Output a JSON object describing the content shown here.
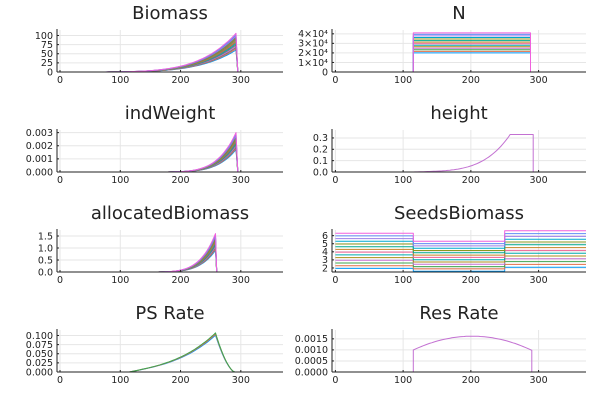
{
  "chart_data": [
    {
      "type": "line",
      "title": "Biomass",
      "xlim": [
        -5,
        370
      ],
      "ylim": [
        0,
        115
      ],
      "xticks": [
        0,
        100,
        200,
        300
      ],
      "yticks": [
        0,
        25,
        50,
        75,
        100
      ],
      "yticklabels": [
        "0",
        "25",
        "50",
        "75",
        "100"
      ],
      "grid": true,
      "legend": "none",
      "series_count": 14,
      "shape": {
        "kind": "rise_peak",
        "x_start": 0,
        "x_peak": 292,
        "x_end": 295,
        "peak_min": 60,
        "peak_max": 106
      }
    },
    {
      "type": "line",
      "title": "N",
      "xlim": [
        -5,
        370
      ],
      "ylim": [
        0,
        4.4
      ],
      "xticks": [
        0,
        100,
        200,
        300
      ],
      "yticks": [
        0,
        1,
        2,
        3,
        4
      ],
      "yticklabels": [
        "0",
        "1×10⁴",
        "2×10⁴",
        "3×10⁴",
        "4×10⁴"
      ],
      "grid": true,
      "legend": "none",
      "series_count": 14,
      "shape": {
        "kind": "plateau",
        "x_start": 115,
        "x_end": 288,
        "level_min": 2.0,
        "level_max": 4.1
      }
    },
    {
      "type": "line",
      "title": "indWeight",
      "xlim": [
        -5,
        370
      ],
      "ylim": [
        0,
        0.0032
      ],
      "xticks": [
        0,
        100,
        200,
        300
      ],
      "yticks": [
        0,
        0.001,
        0.002,
        0.003
      ],
      "yticklabels": [
        "0.000",
        "0.001",
        "0.002",
        "0.003"
      ],
      "grid": true,
      "legend": "none",
      "series_count": 14,
      "shape": {
        "kind": "rise_peak",
        "x_start": 140,
        "x_peak": 292,
        "x_end": 295,
        "peak_min": 0.0017,
        "peak_max": 0.003
      }
    },
    {
      "type": "line",
      "title": "height",
      "xlim": [
        -5,
        370
      ],
      "ylim": [
        0,
        0.37
      ],
      "xticks": [
        0,
        100,
        200,
        300
      ],
      "yticks": [
        0,
        0.1,
        0.2,
        0.3
      ],
      "yticklabels": [
        "0.0",
        "0.1",
        "0.2",
        "0.3"
      ],
      "grid": true,
      "legend": "none",
      "series_count": 1,
      "shape": {
        "kind": "height_curve",
        "x_start": 115,
        "x_top": 258,
        "x_end": 292,
        "level": 0.33
      }
    },
    {
      "type": "line",
      "title": "allocatedBiomass",
      "xlim": [
        -5,
        370
      ],
      "ylim": [
        0,
        1.75
      ],
      "xticks": [
        0,
        100,
        200,
        300
      ],
      "yticks": [
        0,
        0.5,
        1.0,
        1.5
      ],
      "yticklabels": [
        "0.0",
        "0.5",
        "1.0",
        "1.5"
      ],
      "grid": true,
      "legend": "none",
      "series_count": 14,
      "shape": {
        "kind": "rise_peak",
        "x_start": 130,
        "x_peak": 258,
        "x_end": 260,
        "peak_min": 0.9,
        "peak_max": 1.6
      }
    },
    {
      "type": "line",
      "title": "SeedsBiomass",
      "xlim": [
        -5,
        370
      ],
      "ylim": [
        1.5,
        6.7
      ],
      "xticks": [
        0,
        100,
        200,
        300
      ],
      "yticks": [
        2,
        3,
        4,
        5,
        6
      ],
      "yticklabels": [
        "2",
        "3",
        "4",
        "5",
        "6"
      ],
      "grid": true,
      "legend": "none",
      "series_count": 14,
      "shape": {
        "kind": "steps",
        "step1_x": 115,
        "step2_x": 250,
        "seg1": [
          1.95,
          6.3
        ],
        "seg2": [
          1.6,
          5.3
        ],
        "seg3": [
          2.1,
          6.6
        ]
      }
    },
    {
      "type": "line",
      "title": "PS Rate",
      "xlim": [
        -5,
        370
      ],
      "ylim": [
        0,
        0.115
      ],
      "xticks": [
        0,
        100,
        200,
        300
      ],
      "yticks": [
        0,
        0.025,
        0.05,
        0.075,
        0.1
      ],
      "yticklabels": [
        "0.000",
        "0.025",
        "0.050",
        "0.075",
        "0.100"
      ],
      "grid": true,
      "legend": "none",
      "series_count": 3,
      "shape": {
        "kind": "ps_rate",
        "x_start": 115,
        "x_peak": 258,
        "x_end": 290,
        "peak": 0.107
      }
    },
    {
      "type": "line",
      "title": "Res Rate",
      "xlim": [
        -5,
        370
      ],
      "ylim": [
        0,
        0.0019
      ],
      "xticks": [
        0,
        100,
        200,
        300
      ],
      "yticks": [
        0,
        0.0005,
        0.001,
        0.0015
      ],
      "yticklabels": [
        "0.0000",
        "0.0005",
        "0.0010",
        "0.0015"
      ],
      "grid": true,
      "legend": "none",
      "series_count": 1,
      "shape": {
        "kind": "arch",
        "x_start": 115,
        "x_end": 290,
        "edge": 0.00098,
        "peak": 0.00162,
        "x_peak": 202
      }
    }
  ],
  "colors": {
    "palette": [
      "#009AFA",
      "#E36F47",
      "#3EA44E",
      "#C371D2",
      "#AC8E18",
      "#00AAAE",
      "#ED5E93",
      "#C68225",
      "#00A98D",
      "#8E971E",
      "#00A9CD",
      "#9B7FE9",
      "#618DF6",
      "#F061DD"
    ],
    "dark_series": "#777777",
    "grid": "#e6e6e6",
    "axis": "#222222"
  }
}
